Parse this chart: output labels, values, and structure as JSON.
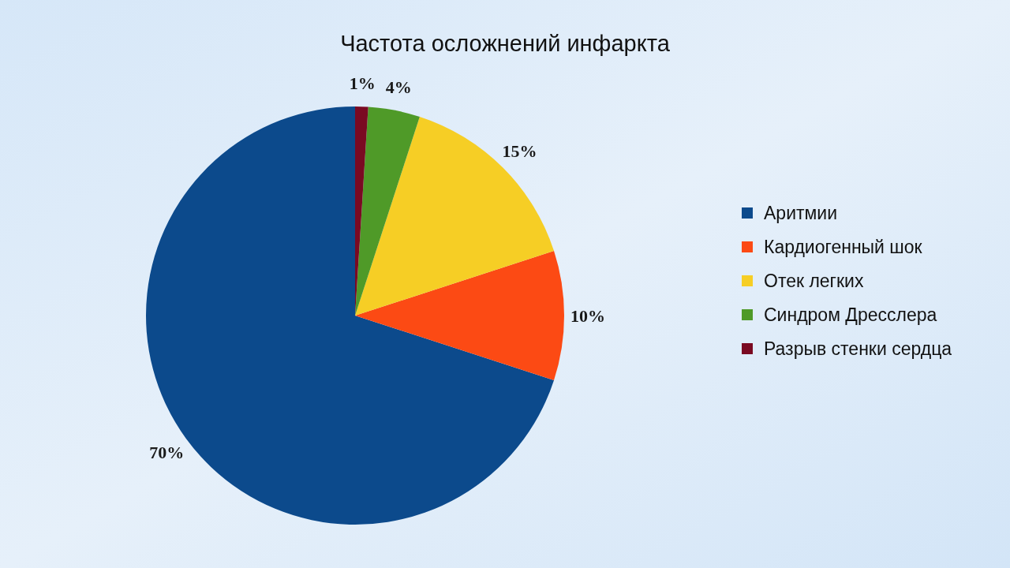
{
  "chart_data": {
    "type": "pie",
    "title": "Частота осложнений инфаркта",
    "categories": [
      "Аритмии",
      "Кардиогенный шок",
      "Отек легких",
      "Синдром Дресслера",
      "Разрыв стенки сердца"
    ],
    "values": [
      70,
      10,
      15,
      4,
      1
    ],
    "colors": [
      "#0c4a8c",
      "#fc4a14",
      "#f6ce25",
      "#4f9a28",
      "#7a0a22"
    ],
    "value_labels": [
      "70%",
      "10%",
      "15%",
      "4%",
      "1%"
    ],
    "legend": "right"
  }
}
